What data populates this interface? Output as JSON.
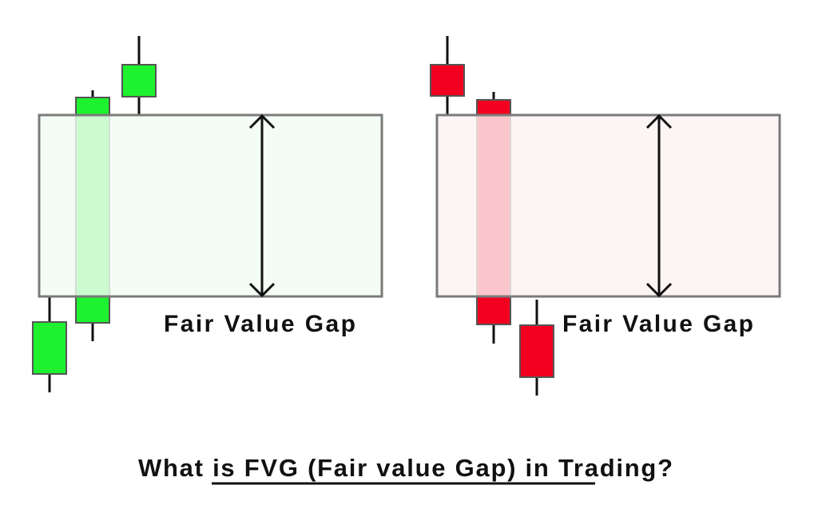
{
  "panels": [
    {
      "id": "bullish",
      "label": "Fair Value Gap",
      "candle_color": "#1ef22e",
      "zone_fill": "#f2fcf3",
      "direction": "bullish"
    },
    {
      "id": "bearish",
      "label": "Fair Value Gap",
      "candle_color": "#f20020",
      "zone_fill": "#fdf2f2",
      "direction": "bearish"
    }
  ],
  "title": "What is FVG (Fair value Gap) in Trading?",
  "colors": {
    "zone_border": "#7a7a7a",
    "wick": "#111111",
    "text": "#111111"
  }
}
